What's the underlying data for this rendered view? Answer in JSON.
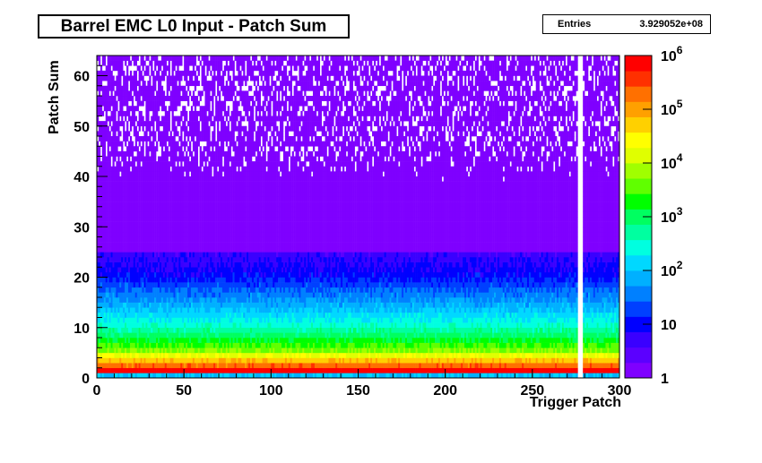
{
  "title": "Barrel EMC L0 Input - Patch Sum",
  "stats": {
    "label": "Entries",
    "value": "3.929052e+08"
  },
  "chart_data": {
    "type": "heatmap",
    "title": "Barrel EMC L0 Input - Patch Sum",
    "xlabel": "Trigger Patch",
    "ylabel": "Patch Sum",
    "xlim": [
      0,
      300
    ],
    "ylim": [
      0,
      64
    ],
    "xticks": [
      0,
      50,
      100,
      150,
      200,
      250,
      300
    ],
    "yticks": [
      0,
      10,
      20,
      30,
      40,
      50,
      60
    ],
    "zscale": "log",
    "zlim": [
      1,
      1000000
    ],
    "zticks": [
      "1",
      "10",
      "10^2",
      "10^3",
      "10^4",
      "10^5",
      "10^6"
    ],
    "bins": {
      "x": 300,
      "y": 64
    },
    "density_profile": [
      {
        "patch_sum": 0,
        "approx_counts": 100
      },
      {
        "patch_sum": 1,
        "approx_counts": 1000000
      },
      {
        "patch_sum": 2,
        "approx_counts": 200000
      },
      {
        "patch_sum": 5,
        "approx_counts": 5000
      },
      {
        "patch_sum": 10,
        "approx_counts": 300
      },
      {
        "patch_sum": 15,
        "approx_counts": 50
      },
      {
        "patch_sum": 20,
        "approx_counts": 10
      },
      {
        "patch_sum": 30,
        "approx_counts": 2
      },
      {
        "patch_sum": 45,
        "approx_counts": 1
      },
      {
        "patch_sum": 63,
        "approx_counts": 1
      }
    ],
    "empty_patches": [
      276,
      277,
      278
    ],
    "palette": [
      "#7f00ff",
      "#5b00ff",
      "#3a00ff",
      "#0000ff",
      "#0040ff",
      "#0080ff",
      "#00b0ff",
      "#00d8ff",
      "#00ffe0",
      "#00ffa0",
      "#00ff60",
      "#00ff00",
      "#60ff00",
      "#a0ff00",
      "#e0ff00",
      "#ffff00",
      "#ffd000",
      "#ffa000",
      "#ff7000",
      "#ff3000",
      "#ff0000"
    ],
    "grid": false,
    "legend": "colorbar-right"
  }
}
